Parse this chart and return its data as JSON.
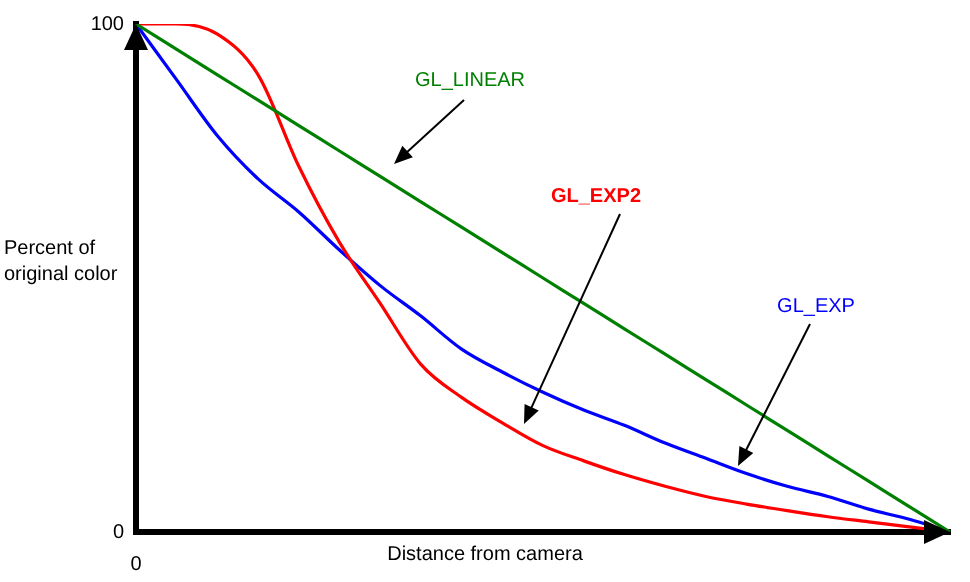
{
  "chart_data": {
    "type": "line",
    "xlabel": "Distance from camera",
    "ylabel": "Percent of\noriginal color",
    "categories": [
      "0",
      null,
      null,
      null,
      null,
      null,
      null,
      null,
      null,
      null,
      null,
      null,
      null,
      null,
      null,
      null,
      null,
      null,
      null,
      null,
      null
    ],
    "series": [
      {
        "name": "GL_LINEAR",
        "color": "#008000",
        "values": [
          100,
          95,
          90,
          85,
          80,
          75,
          70,
          65,
          60,
          55,
          50,
          45,
          40,
          35,
          30,
          25,
          20,
          15,
          10,
          5,
          0
        ]
      },
      {
        "name": "GL_EXP2",
        "color": "#ff0000",
        "values": [
          100,
          100,
          98,
          90,
          72,
          57,
          45,
          33,
          26.5,
          21.5,
          17,
          14,
          11.3,
          9,
          7,
          5.5,
          4.2,
          3,
          2,
          1,
          0
        ]
      },
      {
        "name": "GL_EXP",
        "color": "#0000ff",
        "values": [
          100,
          89,
          78,
          69.5,
          63,
          55.5,
          48.5,
          42.5,
          36,
          31.5,
          27.5,
          24,
          21,
          17.5,
          14.5,
          11.5,
          9,
          7,
          4.5,
          2.5,
          0
        ]
      }
    ],
    "ylim": [
      0,
      100
    ],
    "yticks": [
      0,
      100
    ],
    "grid": false,
    "legend": false,
    "marker": "none",
    "line_style": "solid"
  }
}
